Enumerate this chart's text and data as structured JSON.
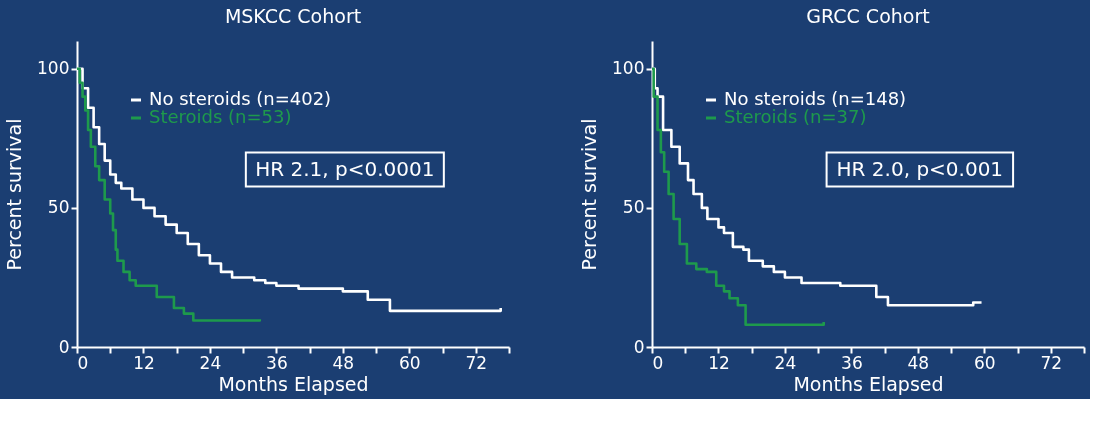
{
  "chart_data": [
    {
      "type": "step",
      "title": "MSKCC Cohort",
      "xlabel": "Months Elapsed",
      "ylabel": "Percent survival",
      "xlim": [
        0,
        78
      ],
      "ylim": [
        0,
        110
      ],
      "xticks": [
        0,
        {
          "value": 6,
          "label": null
        },
        12,
        {
          "value": 18,
          "label": null
        },
        24,
        {
          "value": 30,
          "label": null
        },
        36,
        {
          "value": 42,
          "label": null
        },
        48,
        {
          "value": 54,
          "label": null
        },
        60,
        {
          "value": 66,
          "label": null
        },
        72,
        {
          "value": 78,
          "label": null
        }
      ],
      "yticks": [
        0,
        50,
        100
      ],
      "grid": false,
      "legend": "top left",
      "annotations": [
        "HR 2.1, p<0.0001"
      ],
      "series": [
        {
          "name": "No steroids (n=402)",
          "color": "#ffffff",
          "x": [
            0,
            1,
            2,
            3,
            4,
            5,
            6,
            7,
            8,
            10,
            12,
            14,
            16,
            18,
            20,
            22,
            24,
            26,
            28,
            30,
            32,
            34,
            36,
            40,
            44,
            48,
            52,
            52.5,
            56.5,
            56.5,
            76.5,
            76.5
          ],
          "values": [
            100,
            93,
            86,
            79,
            73,
            67,
            62,
            59,
            57,
            53,
            50,
            47,
            44,
            41,
            37,
            33,
            30,
            27,
            25,
            25,
            24,
            23,
            22,
            21,
            21,
            20,
            20,
            17,
            17,
            13,
            13,
            14
          ]
        },
        {
          "name": "Steroids (n=53)",
          "color": "#1e9a4c",
          "x": [
            0,
            0.5,
            1,
            1.5,
            2,
            2.5,
            3.3,
            4,
            5,
            6,
            6.5,
            7,
            7.3,
            8.4,
            9.5,
            10.6,
            14.4,
            14.4,
            16,
            17.5,
            19.3,
            21,
            33,
            33
          ],
          "values": [
            100,
            95,
            90,
            85,
            78,
            72,
            65,
            60,
            53,
            48,
            42,
            35,
            31,
            27,
            24,
            22,
            22,
            18,
            18,
            14,
            12,
            9.5,
            9.5,
            10
          ]
        }
      ]
    },
    {
      "type": "step",
      "title": "GRCC Cohort",
      "xlabel": "Months Elapsed",
      "ylabel": "Percent survival",
      "xlim": [
        0,
        78
      ],
      "ylim": [
        0,
        110
      ],
      "xticks": [
        0,
        {
          "value": 6,
          "label": null
        },
        12,
        {
          "value": 18,
          "label": null
        },
        24,
        {
          "value": 30,
          "label": null
        },
        36,
        {
          "value": 42,
          "label": null
        },
        48,
        {
          "value": 54,
          "label": null
        },
        60,
        {
          "value": 66,
          "label": null
        },
        72,
        {
          "value": 78,
          "label": null
        }
      ],
      "yticks": [
        0,
        50,
        100
      ],
      "grid": false,
      "legend": "top left",
      "annotations": [
        "HR 2.0, p<0.001"
      ],
      "series": [
        {
          "name": "No steroids (n=148)",
          "color": "#ffffff",
          "x": [
            0,
            0.5,
            1,
            2,
            3.5,
            5,
            6.5,
            7.5,
            9,
            10,
            12,
            13,
            14.6,
            16.5,
            17.5,
            20,
            22,
            24,
            27,
            30,
            34,
            40.5,
            40.5,
            42.6,
            42.6,
            58,
            58,
            59.5
          ],
          "values": [
            100,
            93,
            90,
            78,
            72,
            66,
            60,
            55,
            50,
            46,
            43,
            41,
            36,
            35,
            31,
            29,
            27,
            25,
            23,
            23,
            22,
            22,
            18,
            18,
            15,
            15,
            16,
            16
          ]
        },
        {
          "name": "Steroids (n=37)",
          "color": "#1e9a4c",
          "x": [
            0,
            0.3,
            1,
            1.6,
            2.2,
            3,
            3.9,
            5,
            6.3,
            8,
            9.9,
            11.6,
            13,
            14,
            15.5,
            16.9,
            31,
            31
          ],
          "values": [
            100,
            90,
            78,
            70,
            63,
            55,
            46,
            37,
            30,
            28,
            27,
            22,
            20,
            17.5,
            15,
            8,
            8,
            9
          ]
        }
      ]
    }
  ]
}
